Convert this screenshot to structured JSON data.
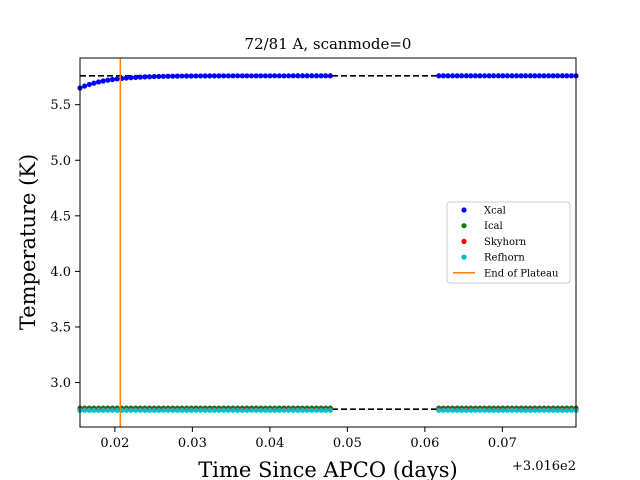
{
  "chart_data": {
    "type": "scatter",
    "title": "72/81 A, scanmode=0",
    "xlabel": "Time Since APCO (days)",
    "ylabel": "Temperature (K)",
    "x_offset_label": "+3.016e2",
    "x_ticks": [
      0.02,
      0.03,
      0.04,
      0.05,
      0.06,
      0.07
    ],
    "x_tick_labels": [
      "0.02",
      "0.03",
      "0.04",
      "0.05",
      "0.06",
      "0.07"
    ],
    "y_ticks": [
      3.0,
      3.5,
      4.0,
      4.5,
      5.0,
      5.5
    ],
    "y_tick_labels": [
      "3.0",
      "3.5",
      "4.0",
      "4.5",
      "5.0",
      "5.5"
    ],
    "xlim": [
      0.0155,
      0.0795
    ],
    "ylim": [
      2.6,
      5.92
    ],
    "grid": false,
    "legend_position": "center-right",
    "series": [
      {
        "name": "Xcal",
        "color": "#0000ff",
        "segments": [
          {
            "x_start": 0.0155,
            "x_end": 0.0478,
            "n": 55,
            "y_start": 5.65,
            "y_plateau": 5.76,
            "tau": 0.0035
          },
          {
            "x_start": 0.0618,
            "x_end": 0.0795,
            "n": 31,
            "y_start": 5.76,
            "y_plateau": 5.76,
            "tau": 0.01
          }
        ]
      },
      {
        "name": "Ical",
        "color": "#008000",
        "segments": [
          {
            "x_start": 0.0155,
            "x_end": 0.0478,
            "n": 55,
            "y": 2.77
          },
          {
            "x_start": 0.0618,
            "x_end": 0.0795,
            "n": 31,
            "y": 2.77
          }
        ]
      },
      {
        "name": "Skyhorn",
        "color": "#ff0000",
        "segments": [
          {
            "x_start": 0.0155,
            "x_end": 0.0478,
            "n": 55,
            "y": 2.76
          },
          {
            "x_start": 0.0618,
            "x_end": 0.0795,
            "n": 31,
            "y": 2.76
          }
        ]
      },
      {
        "name": "Refhorn",
        "color": "#00bfbf",
        "segments": [
          {
            "x_start": 0.0155,
            "x_end": 0.0478,
            "n": 55,
            "y": 2.75
          },
          {
            "x_start": 0.0618,
            "x_end": 0.0795,
            "n": 31,
            "y": 2.75
          }
        ]
      }
    ],
    "reference_lines": [
      {
        "orientation": "horizontal",
        "y": 5.76,
        "style": "dashed",
        "color": "#000000"
      },
      {
        "orientation": "horizontal",
        "y": 2.76,
        "style": "dashed",
        "color": "#000000"
      }
    ],
    "vlines": [
      {
        "name": "End of Plateau",
        "x": 0.0207,
        "color": "#ff7f0e"
      }
    ],
    "legend": [
      {
        "label": "Xcal",
        "kind": "dot",
        "color": "#0000ff"
      },
      {
        "label": "Ical",
        "kind": "dot",
        "color": "#008000"
      },
      {
        "label": "Skyhorn",
        "kind": "dot",
        "color": "#ff0000"
      },
      {
        "label": "Refhorn",
        "kind": "dot",
        "color": "#00bfbf"
      },
      {
        "label": "End of Plateau",
        "kind": "line",
        "color": "#ff7f0e"
      }
    ]
  }
}
